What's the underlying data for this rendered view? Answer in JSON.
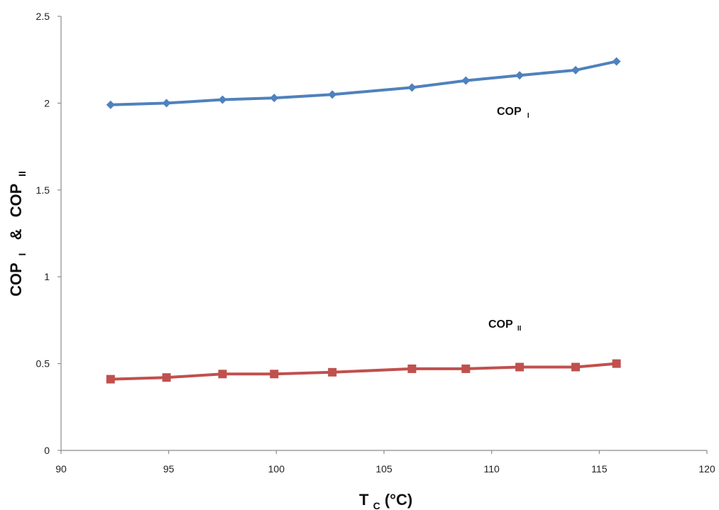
{
  "chart_data": {
    "type": "line",
    "xlabel": {
      "main": "T",
      "sub": "C",
      "rest": "(°C)"
    },
    "ylabel": {
      "part1": "COP",
      "sub1": "I",
      "part2": " & ",
      "part3": "COP",
      "sub2": "II"
    },
    "xlim": [
      90,
      120
    ],
    "ylim": [
      0,
      2.5
    ],
    "xticks": [
      "90",
      "95",
      "100",
      "105",
      "110",
      "115",
      "120"
    ],
    "yticks": [
      "0",
      "0.5",
      "1",
      "1.5",
      "2",
      "2.5"
    ],
    "grid": false,
    "legend": "none",
    "series": [
      {
        "label_main": "COP",
        "label_sub": "I",
        "color": "#4f81bd",
        "marker": "diamond",
        "x": [
          92.3,
          94.9,
          97.5,
          99.9,
          102.6,
          106.3,
          108.8,
          111.3,
          113.9,
          115.8
        ],
        "y": [
          1.99,
          2.0,
          2.02,
          2.03,
          2.05,
          2.09,
          2.13,
          2.16,
          2.19,
          2.24
        ]
      },
      {
        "label_main": "COP",
        "label_sub": "II",
        "color": "#c0504d",
        "marker": "square",
        "x": [
          92.3,
          94.9,
          97.5,
          99.9,
          102.6,
          106.3,
          108.8,
          111.3,
          113.9,
          115.8
        ],
        "y": [
          0.41,
          0.42,
          0.44,
          0.44,
          0.45,
          0.47,
          0.47,
          0.48,
          0.48,
          0.5
        ]
      }
    ]
  }
}
